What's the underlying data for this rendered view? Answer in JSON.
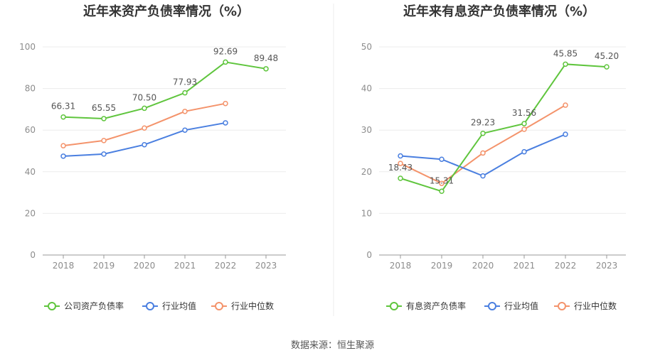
{
  "source": "数据来源：恒生聚源",
  "chart_data": [
    {
      "type": "line",
      "title": "近年来资产负债率情况（%）",
      "categories": [
        "2018",
        "2019",
        "2020",
        "2021",
        "2022",
        "2023"
      ],
      "ylim": [
        0,
        100
      ],
      "yticks": [
        0,
        20,
        40,
        60,
        80,
        100
      ],
      "series": [
        {
          "name": "公司资产负债率",
          "color": "#5fc53d",
          "values": [
            66.31,
            65.55,
            70.5,
            77.93,
            92.69,
            89.48
          ],
          "labels": [
            "66.31",
            "65.55",
            "70.50",
            "77.93",
            "92.69",
            "89.48"
          ]
        },
        {
          "name": "行业均值",
          "color": "#4a7fe0",
          "values": [
            47.5,
            48.5,
            53.0,
            60.0,
            63.5,
            null
          ]
        },
        {
          "name": "行业中位数",
          "color": "#f4936b",
          "values": [
            52.5,
            55.0,
            61.0,
            69.0,
            72.8,
            null
          ]
        }
      ]
    },
    {
      "type": "line",
      "title": "近年来有息资产负债率情况（%）",
      "categories": [
        "2018",
        "2019",
        "2020",
        "2021",
        "2022",
        "2023"
      ],
      "ylim": [
        0,
        50
      ],
      "yticks": [
        0,
        10,
        20,
        30,
        40,
        50
      ],
      "series": [
        {
          "name": "有息资产负债率",
          "color": "#5fc53d",
          "values": [
            18.43,
            15.31,
            29.23,
            31.56,
            45.85,
            45.2
          ],
          "labels": [
            "18.43",
            "15.31",
            "29.23",
            "31.56",
            "45.85",
            "45.20"
          ]
        },
        {
          "name": "行业均值",
          "color": "#4a7fe0",
          "values": [
            23.8,
            23.0,
            19.0,
            24.8,
            29.0,
            null
          ]
        },
        {
          "name": "行业中位数",
          "color": "#f4936b",
          "values": [
            22.0,
            17.2,
            24.5,
            30.2,
            36.0,
            null
          ]
        }
      ]
    }
  ]
}
